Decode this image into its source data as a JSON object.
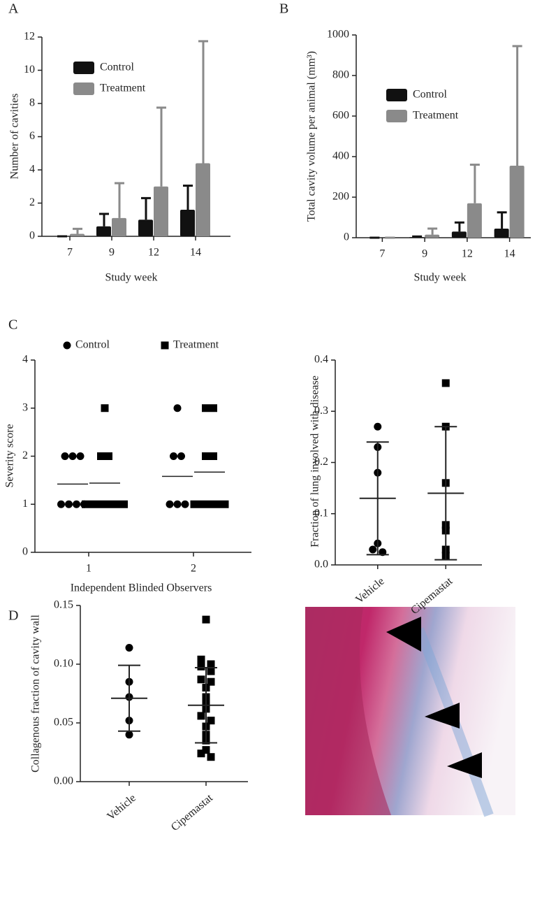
{
  "chart_data": [
    {
      "panel_label": "A",
      "type": "bar",
      "xlabel": "Study week",
      "ylabel": "Number of cavities",
      "categories": [
        "7",
        "9",
        "12",
        "14"
      ],
      "series": [
        {
          "name": "Control",
          "color": "#111111",
          "values": [
            0,
            0.6,
            1.0,
            1.6
          ],
          "errors": [
            0,
            0.75,
            1.3,
            1.45
          ]
        },
        {
          "name": "Treatment",
          "color": "#8a8a8a",
          "values": [
            0.15,
            1.1,
            3.0,
            4.4
          ],
          "errors": [
            0.3,
            2.1,
            4.75,
            7.35
          ]
        }
      ],
      "ylim": [
        0,
        12
      ],
      "yticks": [
        0,
        2,
        4,
        6,
        8,
        10,
        12
      ],
      "legend": "upper left"
    },
    {
      "panel_label": "B",
      "type": "bar",
      "xlabel": "Study week",
      "ylabel": "Total cavity volume per animal (mm³)",
      "categories": [
        "7",
        "9",
        "12",
        "14"
      ],
      "series": [
        {
          "name": "Control",
          "color": "#111111",
          "values": [
            0,
            3,
            30,
            45
          ],
          "errors": [
            0,
            3,
            45,
            80
          ]
        },
        {
          "name": "Treatment",
          "color": "#8a8a8a",
          "values": [
            0,
            15,
            170,
            355
          ],
          "errors": [
            0,
            30,
            190,
            590
          ]
        }
      ],
      "ylim": [
        0,
        1000
      ],
      "yticks": [
        0,
        200,
        400,
        600,
        800,
        1000
      ],
      "legend": "upper left"
    },
    {
      "panel_label": "C",
      "type": "strip",
      "xlabel": "Independent Blinded Observers",
      "ylabel": "Severity score",
      "categories": [
        "1",
        "2"
      ],
      "series": [
        {
          "name": "Control",
          "marker": "circle",
          "color": "#000000",
          "values": [
            [
              2,
              2,
              2,
              1,
              1,
              1,
              1
            ],
            [
              3,
              2,
              2,
              1,
              1,
              1
            ]
          ],
          "means": [
            1.42,
            1.58
          ]
        },
        {
          "name": "Treatment",
          "marker": "square",
          "color": "#000000",
          "values": [
            [
              3,
              2,
              2,
              1,
              1,
              1,
              1,
              1,
              1
            ],
            [
              3,
              3,
              2,
              2,
              1,
              1,
              1,
              1,
              1
            ]
          ],
          "means": [
            1.44,
            1.67
          ]
        }
      ],
      "ylim": [
        0,
        4
      ],
      "yticks": [
        0,
        1,
        2,
        3,
        4
      ],
      "legend": "top"
    },
    {
      "type": "dot",
      "ylabel": "Fraction of lung involved with disease",
      "categories": [
        "Vehicle",
        "Cipemastat"
      ],
      "markers": [
        "circle",
        "square"
      ],
      "color": "#000000",
      "values": [
        [
          0.27,
          0.23,
          0.18,
          0.042,
          0.03,
          0.025
        ],
        [
          0.355,
          0.27,
          0.16,
          0.078,
          0.067,
          0.03,
          0.018
        ]
      ],
      "means": [
        0.13,
        0.14
      ],
      "sd": [
        0.11,
        0.13
      ],
      "ylim": [
        0,
        0.4
      ],
      "yticks": [
        {
          "value": 0,
          "label": "0.0"
        },
        0.1,
        0.2,
        0.3,
        0.4
      ]
    },
    {
      "panel_label": "D",
      "type": "dot",
      "ylabel": "Collagenous fraction of cavity wall",
      "categories": [
        "Vehicle",
        "Cipemastat"
      ],
      "markers": [
        "circle",
        "square"
      ],
      "color": "#000000",
      "values": [
        [
          0.114,
          0.085,
          0.072,
          0.052,
          0.04
        ],
        [
          0.138,
          0.104,
          0.1,
          0.098,
          0.094,
          0.087,
          0.085,
          0.08,
          0.072,
          0.068,
          0.062,
          0.056,
          0.052,
          0.047,
          0.04,
          0.035,
          0.027,
          0.024,
          0.021
        ]
      ],
      "means": [
        0.071,
        0.065
      ],
      "sd": [
        0.028,
        0.032
      ],
      "ylim": [
        0,
        0.15
      ],
      "yticks": [
        {
          "value": 0,
          "label": "0.00"
        },
        0.05,
        {
          "value": 0.1,
          "label": "0.10"
        },
        0.15
      ]
    }
  ]
}
